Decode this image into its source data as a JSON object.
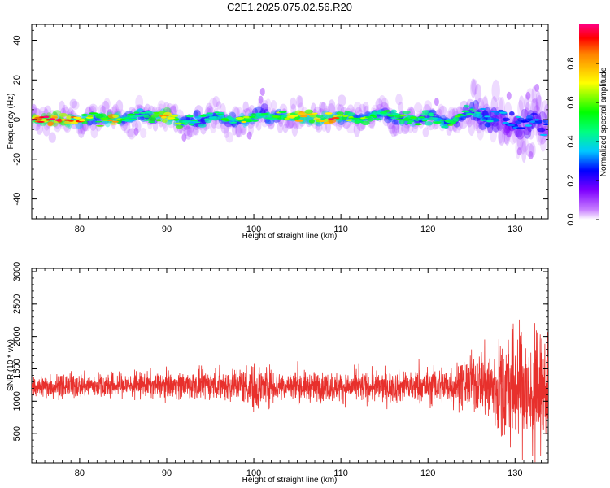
{
  "chart_data": [
    {
      "type": "heatmap",
      "title": "C2E1.2025.075.02.56.R20",
      "xlabel": "Height of straight line (km)",
      "ylabel": "Frequency (Hz)",
      "xlim": [
        74.5,
        133.8
      ],
      "ylim": [
        -50,
        48
      ],
      "xticks": [
        80,
        90,
        100,
        110,
        120,
        130
      ],
      "yticks": [
        -40,
        -20,
        0,
        20,
        40
      ],
      "colorbar": {
        "label": "Normalized spectral amplitude",
        "range": [
          0,
          1
        ],
        "ticks": [
          "0.0",
          "0.2",
          "0.4",
          "0.6",
          "0.8"
        ]
      },
      "ridge": [
        {
          "x": 75,
          "f": 0.8,
          "amp": 0.9
        },
        {
          "x": 76,
          "f": 0.3,
          "amp": 0.95
        },
        {
          "x": 77,
          "f": 0.2,
          "amp": 1.0
        },
        {
          "x": 78,
          "f": 0.4,
          "amp": 0.95
        },
        {
          "x": 79,
          "f": 0.0,
          "amp": 0.8
        },
        {
          "x": 80,
          "f": 0.2,
          "amp": 0.8
        },
        {
          "x": 81,
          "f": 1.0,
          "amp": 0.6
        },
        {
          "x": 82,
          "f": 0.5,
          "amp": 0.5
        },
        {
          "x": 83,
          "f": 0.8,
          "amp": 0.7
        },
        {
          "x": 84,
          "f": 0.2,
          "amp": 0.9
        },
        {
          "x": 85,
          "f": 1.0,
          "amp": 0.5
        },
        {
          "x": 86,
          "f": 0.5,
          "amp": 0.55
        },
        {
          "x": 87,
          "f": 3.0,
          "amp": 0.5
        },
        {
          "x": 88,
          "f": 1.0,
          "amp": 0.5
        },
        {
          "x": 89,
          "f": 1.5,
          "amp": 0.7
        },
        {
          "x": 90,
          "f": 2.0,
          "amp": 0.9
        },
        {
          "x": 91,
          "f": 0.5,
          "amp": 0.7
        },
        {
          "x": 92,
          "f": -1.0,
          "amp": 0.5
        },
        {
          "x": 93,
          "f": 0.0,
          "amp": 0.5
        },
        {
          "x": 94,
          "f": 0.5,
          "amp": 0.45
        },
        {
          "x": 95,
          "f": 1.0,
          "amp": 0.5
        },
        {
          "x": 96,
          "f": 2.0,
          "amp": 0.45
        },
        {
          "x": 97,
          "f": 0.0,
          "amp": 0.5
        },
        {
          "x": 98,
          "f": -0.5,
          "amp": 0.5
        },
        {
          "x": 99,
          "f": 0.0,
          "amp": 0.7
        },
        {
          "x": 100,
          "f": 0.5,
          "amp": 0.55
        },
        {
          "x": 101,
          "f": 3.0,
          "amp": 0.45
        },
        {
          "x": 102,
          "f": 1.0,
          "amp": 0.5
        },
        {
          "x": 103,
          "f": 1.5,
          "amp": 0.6
        },
        {
          "x": 104,
          "f": 1.0,
          "amp": 0.7
        },
        {
          "x": 105,
          "f": 1.5,
          "amp": 0.8
        },
        {
          "x": 106,
          "f": 1.5,
          "amp": 0.9
        },
        {
          "x": 107,
          "f": 1.0,
          "amp": 0.75
        },
        {
          "x": 108,
          "f": 0.0,
          "amp": 0.7
        },
        {
          "x": 109,
          "f": 0.0,
          "amp": 0.9
        },
        {
          "x": 110,
          "f": 1.0,
          "amp": 0.65
        },
        {
          "x": 111,
          "f": 0.5,
          "amp": 0.6
        },
        {
          "x": 112,
          "f": -0.5,
          "amp": 0.55
        },
        {
          "x": 113,
          "f": 1.0,
          "amp": 0.6
        },
        {
          "x": 114,
          "f": 2.0,
          "amp": 0.5
        },
        {
          "x": 115,
          "f": 3.5,
          "amp": 0.5
        },
        {
          "x": 116,
          "f": 1.0,
          "amp": 0.5
        },
        {
          "x": 117,
          "f": 1.5,
          "amp": 0.55
        },
        {
          "x": 118,
          "f": 0.0,
          "amp": 0.6
        },
        {
          "x": 119,
          "f": 0.5,
          "amp": 0.5
        },
        {
          "x": 120,
          "f": 2.0,
          "amp": 0.5
        },
        {
          "x": 121,
          "f": 0.0,
          "amp": 0.5
        },
        {
          "x": 122,
          "f": -1.0,
          "amp": 0.5
        },
        {
          "x": 123,
          "f": 0.0,
          "amp": 0.55
        },
        {
          "x": 124,
          "f": 2.0,
          "amp": 0.45
        },
        {
          "x": 125,
          "f": 4.0,
          "amp": 0.45
        },
        {
          "x": 126,
          "f": 1.0,
          "amp": 0.4
        },
        {
          "x": 127,
          "f": 0.0,
          "amp": 0.4
        },
        {
          "x": 128,
          "f": 1.5,
          "amp": 0.35
        },
        {
          "x": 129,
          "f": -1.0,
          "amp": 0.3
        },
        {
          "x": 130,
          "f": -3.0,
          "amp": 0.35
        },
        {
          "x": 131,
          "f": -2.0,
          "amp": 0.3
        },
        {
          "x": 132,
          "f": 0.0,
          "amp": 0.35
        },
        {
          "x": 133,
          "f": -3.0,
          "amp": 0.3
        }
      ]
    },
    {
      "type": "line",
      "xlabel": "Height of straight line (km)",
      "ylabel": "SNR (10 * v/v)",
      "xlim": [
        74.5,
        133.8
      ],
      "ylim": [
        50,
        3050
      ],
      "xticks": [
        80,
        90,
        100,
        110,
        120,
        130
      ],
      "yticks": [
        500,
        1000,
        1500,
        2000,
        2500,
        3000
      ],
      "grid": false,
      "series": [
        {
          "color": "#e8302c",
          "envelope": [
            {
              "x": 75,
              "mean": 1230,
              "spread": 160
            },
            {
              "x": 80,
              "mean": 1240,
              "spread": 170
            },
            {
              "x": 85,
              "mean": 1250,
              "spread": 170
            },
            {
              "x": 90,
              "mean": 1250,
              "spread": 180
            },
            {
              "x": 95,
              "mean": 1260,
              "spread": 200
            },
            {
              "x": 99,
              "mean": 1250,
              "spread": 260
            },
            {
              "x": 100,
              "mean": 1200,
              "spread": 330
            },
            {
              "x": 102,
              "mean": 1250,
              "spread": 250
            },
            {
              "x": 105,
              "mean": 1230,
              "spread": 200
            },
            {
              "x": 110,
              "mean": 1220,
              "spread": 200
            },
            {
              "x": 115,
              "mean": 1220,
              "spread": 210
            },
            {
              "x": 120,
              "mean": 1230,
              "spread": 240
            },
            {
              "x": 124,
              "mean": 1250,
              "spread": 330
            },
            {
              "x": 126,
              "mean": 1300,
              "spread": 450
            },
            {
              "x": 128,
              "mean": 1150,
              "spread": 650
            },
            {
              "x": 130,
              "mean": 1250,
              "spread": 850
            },
            {
              "x": 132,
              "mean": 1050,
              "spread": 850
            },
            {
              "x": 133.6,
              "mean": 1200,
              "spread": 700
            }
          ]
        }
      ]
    }
  ]
}
